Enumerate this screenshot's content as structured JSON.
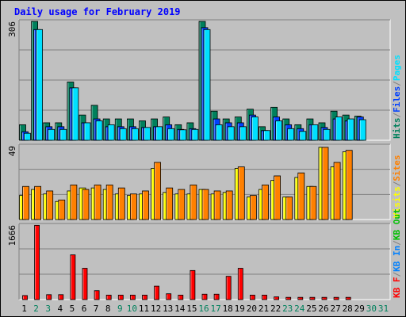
{
  "title": "Daily usage for February 2019",
  "colors": {
    "hits": "#00805c",
    "files": "#0040ff",
    "pages": "#00e0ff",
    "visits": "#ffff00",
    "sites": "#ff8000",
    "kb_f": "#ff0000",
    "kb_in": "#0080ff",
    "kb_out": "#00c000",
    "panel_bg": "#c0c0c0",
    "frame": "#808080",
    "title_color": "#0000ff",
    "weekend_day": "#00805c",
    "weekday_day": "#000000"
  },
  "chart_data": [
    {
      "type": "bar",
      "panel": "top",
      "ymax_label": "306",
      "ylim": [
        0,
        306
      ],
      "categories": [
        "1",
        "2",
        "3",
        "4",
        "5",
        "6",
        "7",
        "8",
        "9",
        "10",
        "11",
        "12",
        "13",
        "14",
        "15",
        "16",
        "17",
        "18",
        "19",
        "20",
        "21",
        "22",
        "23",
        "24",
        "25",
        "26",
        "27",
        "28",
        "29",
        "30",
        "31"
      ],
      "legend": [
        {
          "label": "Hits",
          "color": "hits"
        },
        {
          "label": "/",
          "color": "frame"
        },
        {
          "label": "Files",
          "color": "files"
        },
        {
          "label": "/",
          "color": "frame"
        },
        {
          "label": "Pages",
          "color": "pages"
        }
      ],
      "series": [
        {
          "name": "Hits",
          "color": "hits",
          "values": [
            40,
            306,
            45,
            45,
            150,
            65,
            90,
            55,
            55,
            55,
            50,
            55,
            60,
            40,
            45,
            306,
            75,
            55,
            60,
            80,
            35,
            85,
            55,
            40,
            55,
            45,
            75,
            65,
            62,
            0,
            0
          ]
        },
        {
          "name": "Files",
          "color": "files",
          "values": [
            22,
            285,
            35,
            35,
            135,
            45,
            55,
            35,
            35,
            35,
            33,
            35,
            40,
            28,
            30,
            290,
            55,
            45,
            45,
            65,
            25,
            60,
            40,
            30,
            40,
            33,
            55,
            50,
            60,
            0,
            0
          ]
        },
        {
          "name": "Pages",
          "color": "pages",
          "values": [
            18,
            285,
            28,
            28,
            135,
            45,
            50,
            40,
            30,
            30,
            33,
            35,
            30,
            27,
            28,
            285,
            40,
            35,
            35,
            60,
            25,
            50,
            30,
            23,
            40,
            28,
            60,
            55,
            53,
            0,
            0
          ]
        }
      ]
    },
    {
      "type": "bar",
      "panel": "middle",
      "ymax_label": "49",
      "ylim": [
        0,
        49
      ],
      "categories": [
        "1",
        "2",
        "3",
        "4",
        "5",
        "6",
        "7",
        "8",
        "9",
        "10",
        "11",
        "12",
        "13",
        "14",
        "15",
        "16",
        "17",
        "18",
        "19",
        "20",
        "21",
        "22",
        "23",
        "24",
        "25",
        "26",
        "27",
        "28",
        "29",
        "30",
        "31"
      ],
      "legend": [
        {
          "label": "Visits",
          "color": "visits"
        },
        {
          "label": "/",
          "color": "frame"
        },
        {
          "label": "Sites",
          "color": "sites"
        }
      ],
      "series": [
        {
          "name": "Visits",
          "color": "visits",
          "values": [
            16,
            20,
            17,
            12,
            19,
            21,
            21,
            20,
            17,
            16,
            17,
            34,
            18,
            17,
            17,
            20,
            17,
            18,
            34,
            15,
            20,
            26,
            15,
            28,
            22,
            48,
            35,
            45,
            0,
            0,
            0
          ]
        },
        {
          "name": "Sites",
          "color": "sites",
          "values": [
            22,
            22,
            19,
            13,
            23,
            20,
            23,
            23,
            21,
            17,
            19,
            38,
            21,
            20,
            23,
            20,
            19,
            19,
            35,
            16,
            23,
            29,
            15,
            31,
            22,
            48,
            38,
            46,
            0,
            0,
            0
          ]
        }
      ]
    },
    {
      "type": "bar",
      "panel": "bottom",
      "ymax_label": "1666",
      "ylim": [
        0,
        1666
      ],
      "categories": [
        "1",
        "2",
        "3",
        "4",
        "5",
        "6",
        "7",
        "8",
        "9",
        "10",
        "11",
        "12",
        "13",
        "14",
        "15",
        "16",
        "17",
        "18",
        "19",
        "20",
        "21",
        "22",
        "23",
        "24",
        "25",
        "26",
        "27",
        "28",
        "29",
        "30",
        "31"
      ],
      "legend": [
        {
          "label": "KB F",
          "color": "kb_f"
        },
        {
          "label": "/",
          "color": "frame"
        },
        {
          "label": "KB In",
          "color": "kb_in"
        },
        {
          "label": "/",
          "color": "frame"
        },
        {
          "label": "KB Out",
          "color": "kb_out"
        }
      ],
      "series": [
        {
          "name": "KB F",
          "color": "kb_f",
          "values": [
            90,
            1660,
            110,
            110,
            1000,
            700,
            200,
            100,
            100,
            100,
            100,
            300,
            130,
            100,
            650,
            120,
            120,
            520,
            700,
            100,
            100,
            60,
            50,
            50,
            50,
            50,
            50,
            50,
            0,
            0,
            0
          ]
        }
      ]
    }
  ],
  "x_axis": {
    "labels": [
      "1",
      "2",
      "3",
      "4",
      "5",
      "6",
      "7",
      "8",
      "9",
      "10",
      "11",
      "12",
      "13",
      "14",
      "15",
      "16",
      "17",
      "18",
      "19",
      "20",
      "21",
      "22",
      "23",
      "24",
      "25",
      "26",
      "27",
      "28",
      "29",
      "30",
      "31"
    ],
    "weekend": [
      false,
      true,
      true,
      false,
      false,
      false,
      false,
      false,
      true,
      true,
      false,
      false,
      false,
      false,
      false,
      true,
      true,
      false,
      false,
      false,
      false,
      false,
      true,
      true,
      false,
      false,
      false,
      false,
      false,
      true,
      true
    ]
  }
}
